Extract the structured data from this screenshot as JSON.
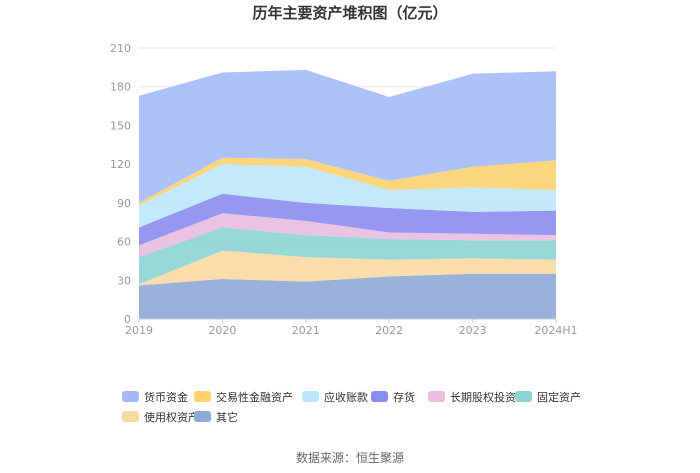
{
  "chart_data": {
    "type": "area",
    "stacked": true,
    "title": "历年主要资产堆积图（亿元）",
    "categories": [
      "2019",
      "2020",
      "2021",
      "2022",
      "2023",
      "2024H1"
    ],
    "ylim": [
      0,
      210
    ],
    "yticks": [
      "0",
      "30",
      "60",
      "90",
      "120",
      "150",
      "180",
      "210"
    ],
    "grid": true,
    "legend_position": "bottom",
    "series": [
      {
        "name": "其它",
        "color": "#8eaad6",
        "values": [
          26,
          31,
          29,
          33,
          35,
          35
        ]
      },
      {
        "name": "使用权资产",
        "color": "#fbd9a3",
        "values": [
          1,
          22,
          19,
          13,
          12,
          11
        ]
      },
      {
        "name": "固定资产",
        "color": "#8cd3d4",
        "values": [
          21,
          18,
          17,
          16,
          14,
          15
        ]
      },
      {
        "name": "长期股权投资",
        "color": "#e8bde0",
        "values": [
          9,
          11,
          11,
          5,
          5,
          4
        ]
      },
      {
        "name": "存货",
        "color": "#8b8cf0",
        "values": [
          14,
          15,
          14,
          19,
          17,
          19
        ]
      },
      {
        "name": "应收账款",
        "color": "#bde7fb",
        "values": [
          17,
          23,
          28,
          14,
          19,
          16
        ]
      },
      {
        "name": "交易性金融资产",
        "color": "#fcd26f",
        "values": [
          2,
          5,
          6,
          7,
          16,
          23
        ]
      },
      {
        "name": "货币资金",
        "color": "#a4baf8",
        "values": [
          83,
          66,
          69,
          65,
          72,
          69
        ]
      }
    ],
    "legend_order": [
      "货币资金",
      "交易性金融资产",
      "应收账款",
      "存货",
      "长期股权投资",
      "固定资产",
      "使用权资产",
      "其它"
    ]
  },
  "source": "数据来源：恒生聚源"
}
